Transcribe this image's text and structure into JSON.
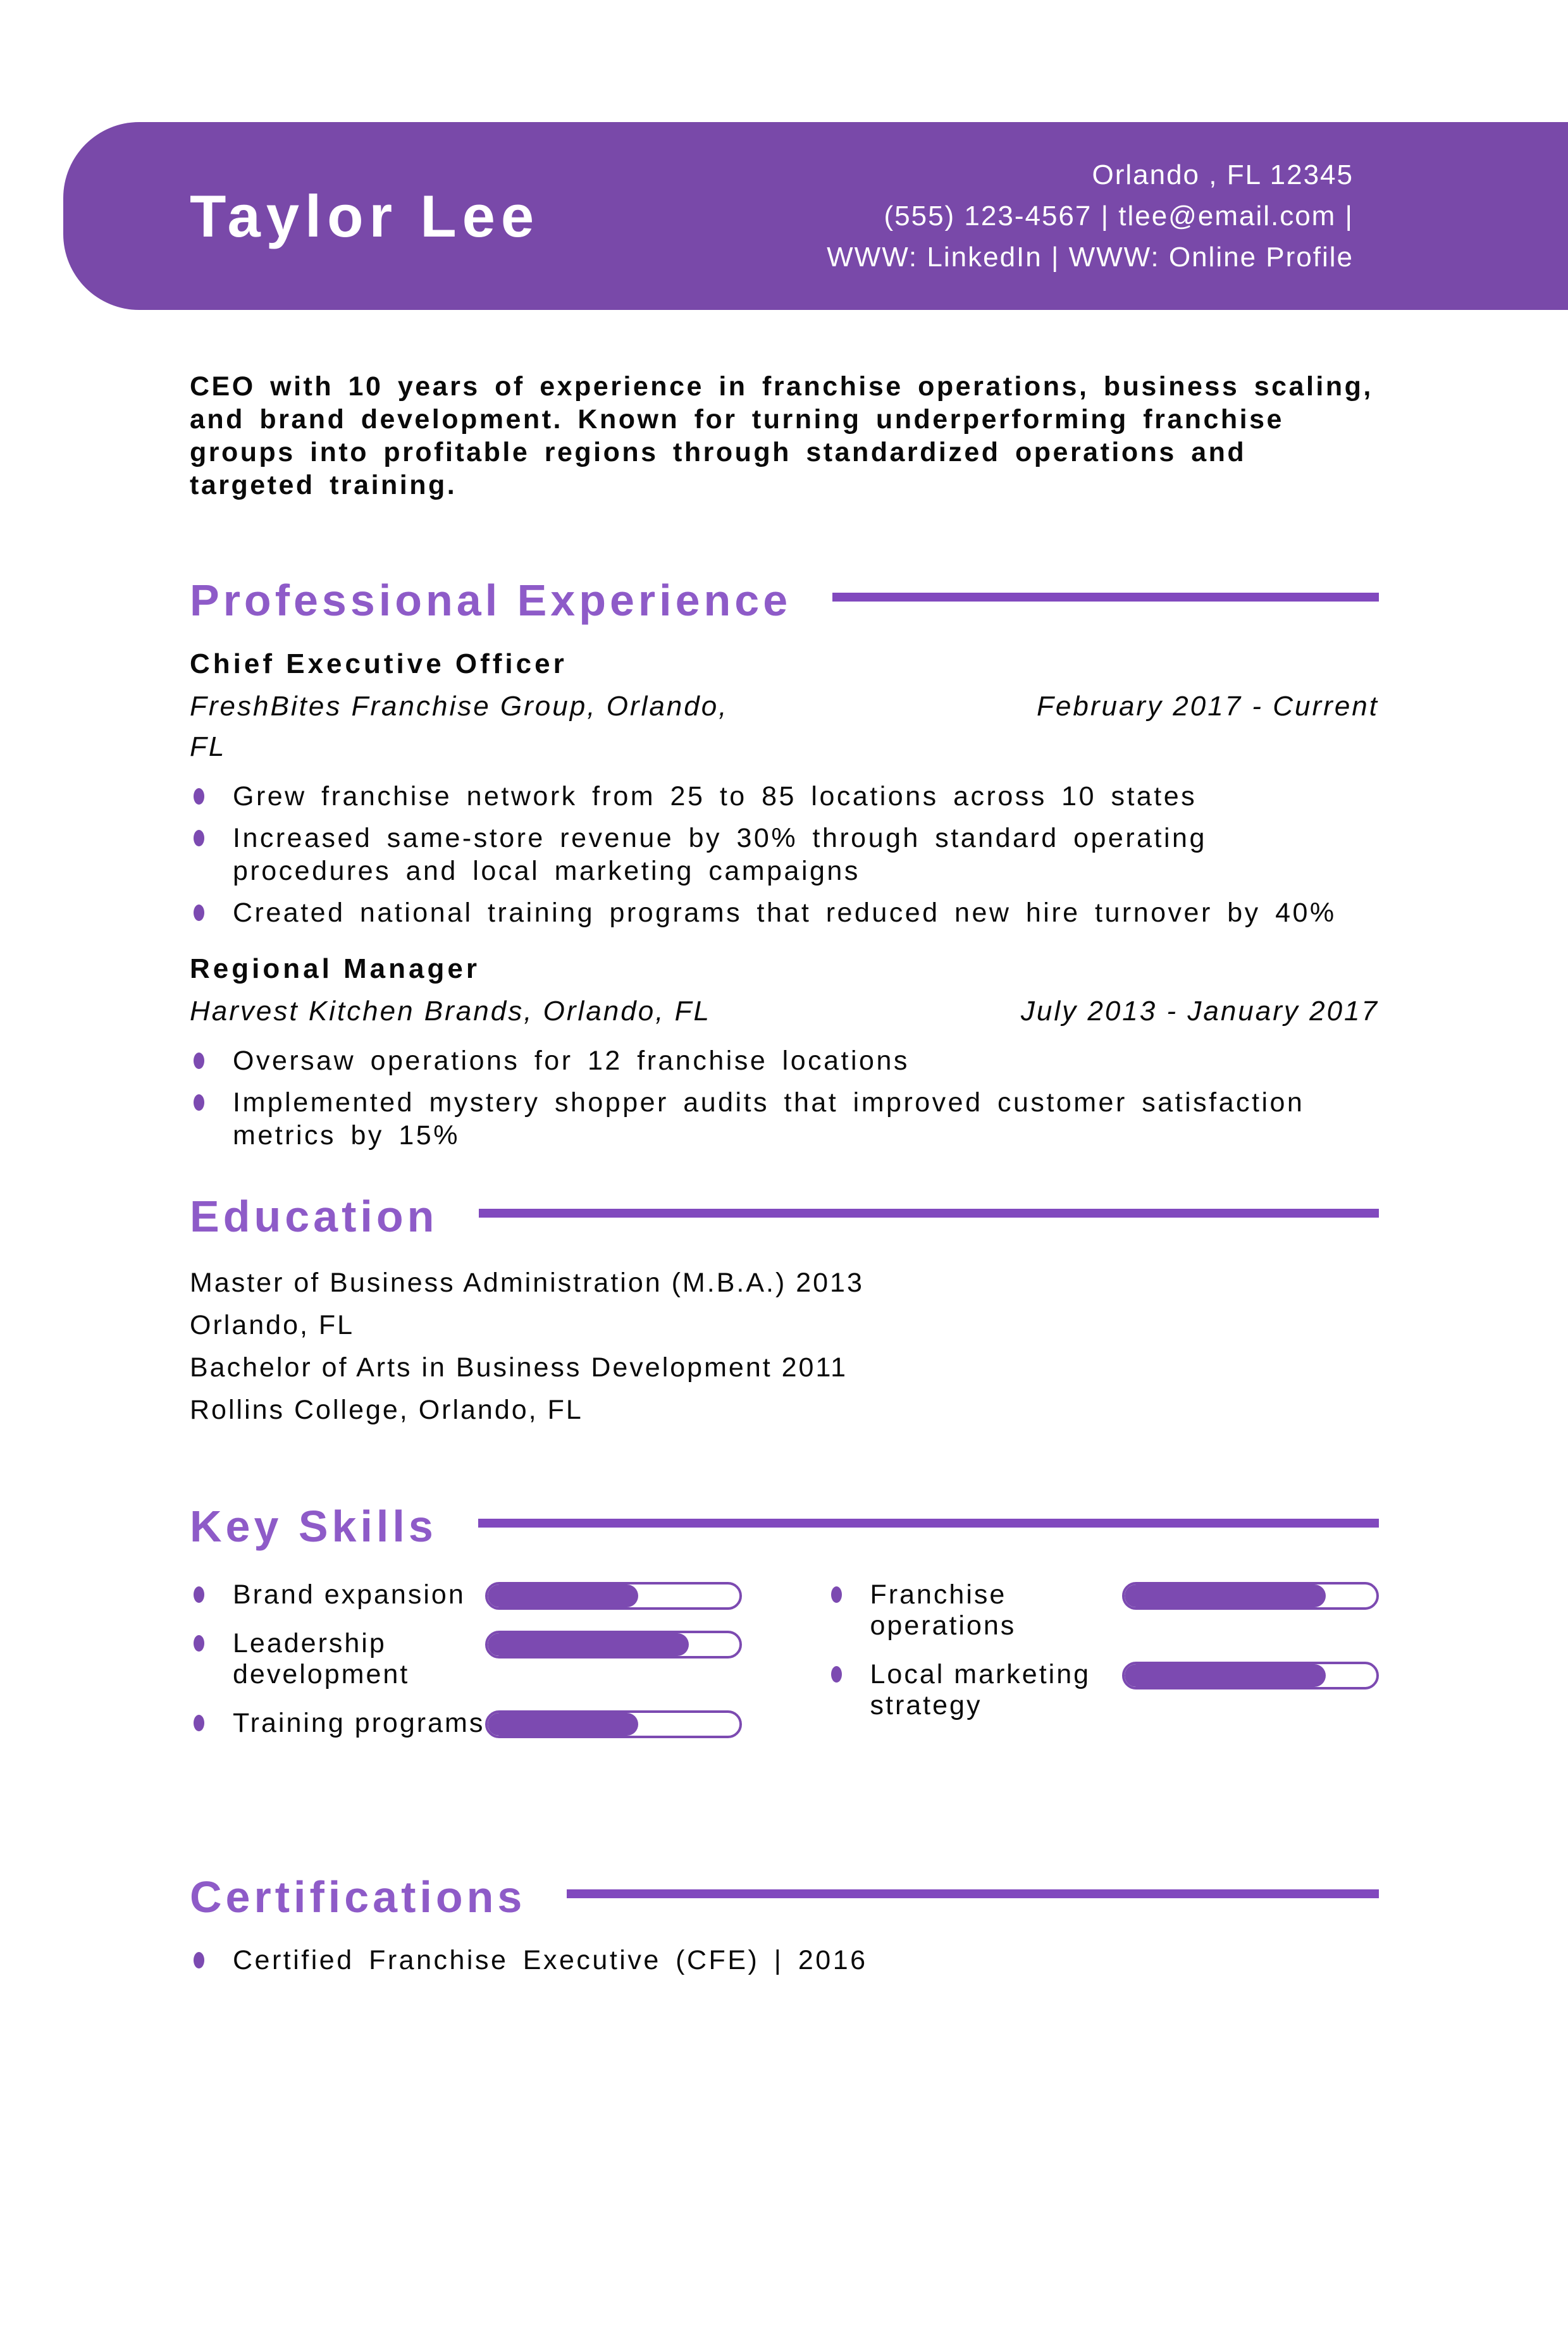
{
  "theme": {
    "header_bg": "#7949A9",
    "heading_color": "#8E5BC8",
    "rule_color": "#8149BE",
    "bar_color": "#7C4AB1",
    "bullet_color": "#7C4AB1",
    "text_color": "#0A0A0A",
    "header_text_color": "#FFFFFF"
  },
  "header": {
    "name": "Taylor Lee",
    "contact_line1": "Orlando , FL 12345",
    "contact_line2": "(555) 123-4567 | tlee@email.com |",
    "contact_line3": "WWW: LinkedIn | WWW: Online Profile"
  },
  "summary": "CEO with 10 years of experience in franchise operations, business scaling, and brand development. Known for turning underperforming franchise groups into profitable regions through standardized operations and targeted training.",
  "sections": {
    "experience_title": "Professional Experience",
    "education_title": "Education",
    "skills_title": "Key Skills",
    "certifications_title": "Certifications"
  },
  "experience": {
    "jobs": [
      {
        "title": "Chief Executive Officer",
        "company_line1": "FreshBites Franchise Group,",
        "company_line2": "Orlando, FL",
        "dates": "February 2017 - Current",
        "bullets": [
          "Grew franchise network from 25 to 85 locations across 10 states",
          "Increased same-store revenue by 30% through standard operating procedures and local marketing campaigns",
          "Created national training programs that reduced new hire turnover by 40%"
        ]
      },
      {
        "title": "Regional Manager",
        "company_line1": "Harvest Kitchen Brands, Orlando, FL",
        "company_line2": "",
        "dates": "July 2013 - January 2017",
        "bullets": [
          "Oversaw operations for 12 franchise locations",
          "Implemented mystery shopper audits that improved customer satisfaction metrics by 15%"
        ]
      }
    ]
  },
  "education": {
    "entries": [
      {
        "degree_line": "Master of Business Administration (M.B.A.) 2013",
        "school_line": "Orlando, FL"
      },
      {
        "degree_line": "Bachelor of Arts in Business Development  2011",
        "school_line": "Rollins College, Orlando, FL"
      }
    ]
  },
  "skills": {
    "left_column": [
      {
        "label": "Brand expansion",
        "level": 60
      },
      {
        "label": "Leadership development",
        "level": 80
      },
      {
        "label": "Training programs",
        "level": 60
      }
    ],
    "right_column": [
      {
        "label": "Franchise operations",
        "level": 80
      },
      {
        "label": "Local marketing strategy",
        "level": 80
      }
    ]
  },
  "certifications": {
    "items": [
      "Certified Franchise Executive (CFE) | 2016"
    ]
  }
}
